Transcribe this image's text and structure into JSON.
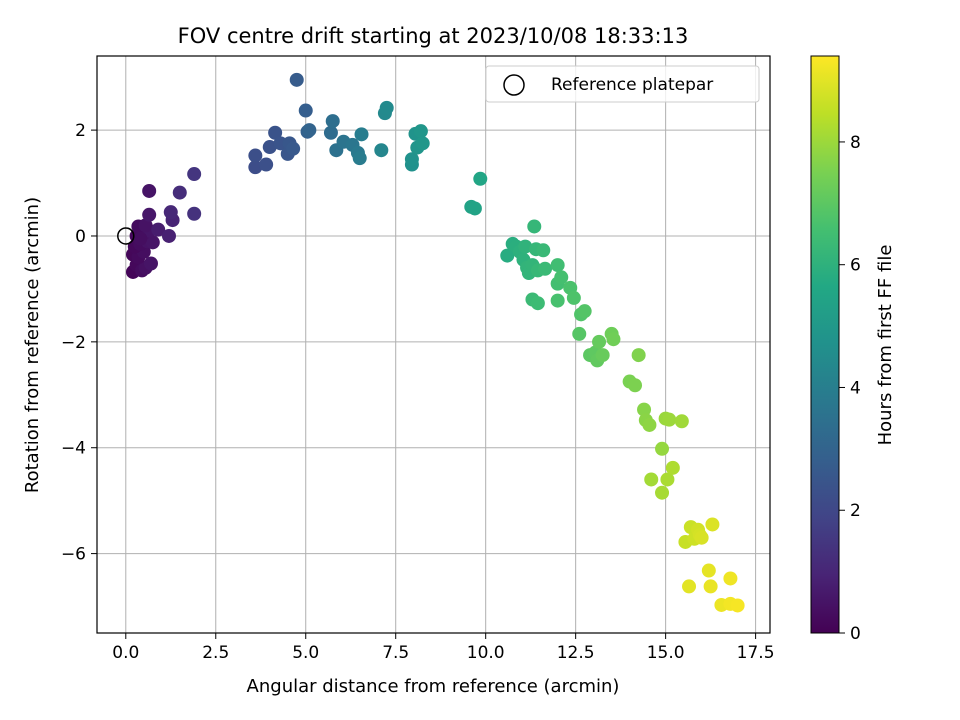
{
  "chart_data": {
    "type": "scatter",
    "title": "FOV centre drift starting at 2023/10/08 18:33:13",
    "xlabel": "Angular distance from reference (arcmin)",
    "ylabel": "Rotation from reference (arcmin)",
    "xlim": [
      -0.8,
      17.9
    ],
    "ylim": [
      -7.5,
      3.4
    ],
    "grid": true,
    "xticks": [
      0.0,
      2.5,
      5.0,
      7.5,
      10.0,
      12.5,
      15.0,
      17.5
    ],
    "xtick_labels": [
      "0.0",
      "2.5",
      "5.0",
      "7.5",
      "10.0",
      "12.5",
      "15.0",
      "17.5"
    ],
    "yticks": [
      2,
      0,
      -2,
      -4,
      -6
    ],
    "ytick_labels": [
      "2",
      "0",
      "−2",
      "−4",
      "−6"
    ],
    "legend": {
      "label": "Reference platepar",
      "location": "upper right"
    },
    "reference_point": {
      "x": 0.0,
      "y": 0.0
    },
    "colorbar": {
      "label": "Hours from first FF file",
      "colormap": "viridis",
      "range": [
        0,
        9.4
      ],
      "ticks": [
        0,
        2,
        4,
        6,
        8
      ],
      "tick_labels": [
        "0",
        "2",
        "4",
        "6",
        "8"
      ]
    },
    "series": [
      {
        "points": [
          {
            "x": 0.2,
            "y": -0.68,
            "c": 0.1
          },
          {
            "x": 0.3,
            "y": -0.55,
            "c": 0.2
          },
          {
            "x": 0.45,
            "y": -0.65,
            "c": 0.3
          },
          {
            "x": 0.55,
            "y": -0.6,
            "c": 0.4
          },
          {
            "x": 0.7,
            "y": -0.52,
            "c": 0.5
          },
          {
            "x": 0.2,
            "y": -0.35,
            "c": 0.15
          },
          {
            "x": 0.35,
            "y": -0.4,
            "c": 0.25
          },
          {
            "x": 0.5,
            "y": -0.3,
            "c": 0.35
          },
          {
            "x": 0.25,
            "y": -0.2,
            "c": 0.2
          },
          {
            "x": 0.4,
            "y": -0.15,
            "c": 0.3
          },
          {
            "x": 0.6,
            "y": -0.1,
            "c": 0.45
          },
          {
            "x": 0.75,
            "y": -0.12,
            "c": 0.5
          },
          {
            "x": 0.3,
            "y": 0.0,
            "c": 0.2
          },
          {
            "x": 0.5,
            "y": 0.05,
            "c": 0.4
          },
          {
            "x": 0.65,
            "y": 0.1,
            "c": 0.55
          },
          {
            "x": 0.35,
            "y": 0.18,
            "c": 0.3
          },
          {
            "x": 0.55,
            "y": 0.2,
            "c": 0.45
          },
          {
            "x": 0.4,
            "y": -0.05,
            "c": 0.35
          },
          {
            "x": 0.65,
            "y": 0.4,
            "c": 0.6
          },
          {
            "x": 0.9,
            "y": 0.12,
            "c": 0.75
          },
          {
            "x": 1.2,
            "y": 0.0,
            "c": 0.85
          },
          {
            "x": 1.3,
            "y": 0.3,
            "c": 0.95
          },
          {
            "x": 1.25,
            "y": 0.45,
            "c": 1.05
          },
          {
            "x": 0.65,
            "y": 0.85,
            "c": 0.5
          },
          {
            "x": 1.5,
            "y": 0.82,
            "c": 1.2
          },
          {
            "x": 1.9,
            "y": 0.42,
            "c": 1.35
          },
          {
            "x": 1.9,
            "y": 1.17,
            "c": 1.45
          },
          {
            "x": 3.6,
            "y": 1.3,
            "c": 2.2
          },
          {
            "x": 3.6,
            "y": 1.52,
            "c": 2.25
          },
          {
            "x": 3.9,
            "y": 1.35,
            "c": 2.3
          },
          {
            "x": 4.0,
            "y": 1.68,
            "c": 2.35
          },
          {
            "x": 4.15,
            "y": 1.95,
            "c": 2.4
          },
          {
            "x": 4.3,
            "y": 1.75,
            "c": 2.45
          },
          {
            "x": 4.5,
            "y": 1.55,
            "c": 2.5
          },
          {
            "x": 4.55,
            "y": 1.75,
            "c": 2.55
          },
          {
            "x": 4.65,
            "y": 1.65,
            "c": 2.6
          },
          {
            "x": 4.75,
            "y": 2.95,
            "c": 2.7
          },
          {
            "x": 5.0,
            "y": 2.37,
            "c": 2.8
          },
          {
            "x": 5.05,
            "y": 1.97,
            "c": 2.9
          },
          {
            "x": 5.1,
            "y": 2.0,
            "c": 3.0
          },
          {
            "x": 5.7,
            "y": 1.95,
            "c": 3.3
          },
          {
            "x": 5.75,
            "y": 2.17,
            "c": 3.4
          },
          {
            "x": 5.85,
            "y": 1.62,
            "c": 3.5
          },
          {
            "x": 6.05,
            "y": 1.78,
            "c": 3.6
          },
          {
            "x": 6.3,
            "y": 1.72,
            "c": 3.7
          },
          {
            "x": 6.45,
            "y": 1.57,
            "c": 3.8
          },
          {
            "x": 6.5,
            "y": 1.47,
            "c": 3.9
          },
          {
            "x": 6.55,
            "y": 1.92,
            "c": 3.95
          },
          {
            "x": 7.1,
            "y": 1.62,
            "c": 4.3
          },
          {
            "x": 7.2,
            "y": 2.32,
            "c": 4.4
          },
          {
            "x": 7.25,
            "y": 2.42,
            "c": 4.45
          },
          {
            "x": 7.95,
            "y": 1.35,
            "c": 4.7
          },
          {
            "x": 7.95,
            "y": 1.45,
            "c": 4.75
          },
          {
            "x": 8.05,
            "y": 1.93,
            "c": 4.8
          },
          {
            "x": 8.1,
            "y": 1.67,
            "c": 4.85
          },
          {
            "x": 8.2,
            "y": 1.98,
            "c": 4.9
          },
          {
            "x": 8.25,
            "y": 1.75,
            "c": 4.95
          },
          {
            "x": 9.6,
            "y": 0.55,
            "c": 5.4
          },
          {
            "x": 9.7,
            "y": 0.52,
            "c": 5.45
          },
          {
            "x": 9.85,
            "y": 1.08,
            "c": 5.5
          },
          {
            "x": 10.6,
            "y": -0.37,
            "c": 5.8
          },
          {
            "x": 10.75,
            "y": -0.15,
            "c": 5.85
          },
          {
            "x": 10.85,
            "y": -0.2,
            "c": 5.9
          },
          {
            "x": 10.95,
            "y": -0.3,
            "c": 5.95
          },
          {
            "x": 11.05,
            "y": -0.45,
            "c": 6.0
          },
          {
            "x": 11.1,
            "y": -0.2,
            "c": 6.05
          },
          {
            "x": 11.15,
            "y": -0.6,
            "c": 6.1
          },
          {
            "x": 11.2,
            "y": -0.7,
            "c": 6.12
          },
          {
            "x": 11.3,
            "y": -0.55,
            "c": 6.15
          },
          {
            "x": 11.35,
            "y": 0.18,
            "c": 6.2
          },
          {
            "x": 11.4,
            "y": -0.25,
            "c": 6.22
          },
          {
            "x": 11.45,
            "y": -0.65,
            "c": 6.25
          },
          {
            "x": 11.6,
            "y": -0.27,
            "c": 6.3
          },
          {
            "x": 11.65,
            "y": -0.62,
            "c": 6.32
          },
          {
            "x": 11.3,
            "y": -1.2,
            "c": 6.35
          },
          {
            "x": 11.45,
            "y": -1.27,
            "c": 6.4
          },
          {
            "x": 12.0,
            "y": -0.55,
            "c": 6.5
          },
          {
            "x": 12.0,
            "y": -0.9,
            "c": 6.55
          },
          {
            "x": 12.1,
            "y": -0.78,
            "c": 6.6
          },
          {
            "x": 12.0,
            "y": -1.22,
            "c": 6.65
          },
          {
            "x": 12.35,
            "y": -0.98,
            "c": 6.7
          },
          {
            "x": 12.45,
            "y": -1.17,
            "c": 6.75
          },
          {
            "x": 12.65,
            "y": -1.48,
            "c": 6.8
          },
          {
            "x": 12.75,
            "y": -1.42,
            "c": 6.85
          },
          {
            "x": 12.6,
            "y": -1.85,
            "c": 6.9
          },
          {
            "x": 12.9,
            "y": -2.25,
            "c": 7.0
          },
          {
            "x": 13.05,
            "y": -2.2,
            "c": 7.05
          },
          {
            "x": 13.1,
            "y": -2.35,
            "c": 7.1
          },
          {
            "x": 13.15,
            "y": -2.0,
            "c": 7.15
          },
          {
            "x": 13.25,
            "y": -2.25,
            "c": 7.2
          },
          {
            "x": 13.5,
            "y": -1.85,
            "c": 7.3
          },
          {
            "x": 13.55,
            "y": -1.95,
            "c": 7.35
          },
          {
            "x": 14.0,
            "y": -2.75,
            "c": 7.5
          },
          {
            "x": 14.15,
            "y": -2.82,
            "c": 7.55
          },
          {
            "x": 14.25,
            "y": -2.25,
            "c": 7.6
          },
          {
            "x": 14.4,
            "y": -3.28,
            "c": 7.7
          },
          {
            "x": 14.45,
            "y": -3.48,
            "c": 7.75
          },
          {
            "x": 14.55,
            "y": -3.57,
            "c": 7.8
          },
          {
            "x": 14.9,
            "y": -4.02,
            "c": 7.9
          },
          {
            "x": 15.0,
            "y": -3.45,
            "c": 7.95
          },
          {
            "x": 15.1,
            "y": -3.47,
            "c": 8.0
          },
          {
            "x": 15.45,
            "y": -3.5,
            "c": 8.05
          },
          {
            "x": 14.6,
            "y": -4.6,
            "c": 8.1
          },
          {
            "x": 14.9,
            "y": -4.85,
            "c": 8.15
          },
          {
            "x": 15.05,
            "y": -4.6,
            "c": 8.2
          },
          {
            "x": 15.2,
            "y": -4.38,
            "c": 8.25
          },
          {
            "x": 15.55,
            "y": -5.78,
            "c": 8.6
          },
          {
            "x": 15.7,
            "y": -5.5,
            "c": 8.65
          },
          {
            "x": 15.8,
            "y": -5.72,
            "c": 8.7
          },
          {
            "x": 15.9,
            "y": -5.55,
            "c": 8.75
          },
          {
            "x": 15.95,
            "y": -5.65,
            "c": 8.8
          },
          {
            "x": 16.0,
            "y": -5.7,
            "c": 8.85
          },
          {
            "x": 16.3,
            "y": -5.45,
            "c": 8.9
          },
          {
            "x": 15.65,
            "y": -6.62,
            "c": 9.0
          },
          {
            "x": 16.2,
            "y": -6.32,
            "c": 9.05
          },
          {
            "x": 16.25,
            "y": -6.62,
            "c": 9.1
          },
          {
            "x": 16.55,
            "y": -6.97,
            "c": 9.15
          },
          {
            "x": 16.8,
            "y": -6.47,
            "c": 9.2
          },
          {
            "x": 16.8,
            "y": -6.95,
            "c": 9.25
          },
          {
            "x": 17.0,
            "y": -6.98,
            "c": 9.3
          }
        ]
      }
    ]
  }
}
